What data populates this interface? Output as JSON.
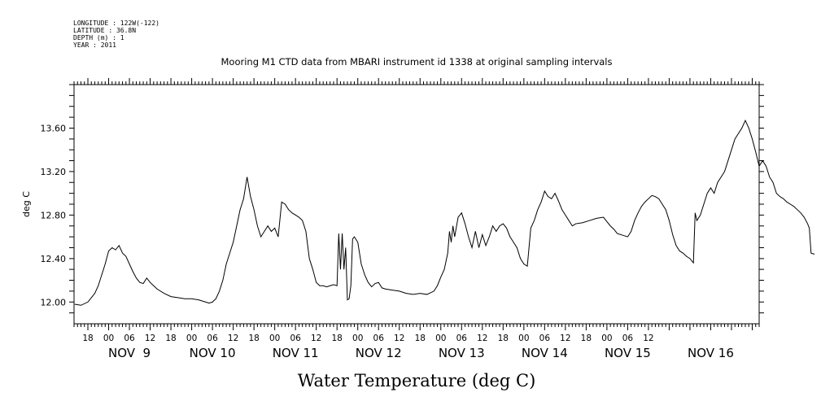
{
  "meta": {
    "longitude": "LONGITUDE : 122W(-122)",
    "latitude": "LATITUDE : 36.8N",
    "depth": "DEPTH (m) : 1",
    "year": "YEAR : 2011"
  },
  "chart_data": {
    "type": "line",
    "title": "Mooring M1 CTD data from MBARI instrument id 1338 at original sampling intervals",
    "xlabel": "Water Temperature (deg C)",
    "ylabel": "deg C",
    "ylim": [
      11.8,
      14.0
    ],
    "xlim_hours": [
      14,
      212
    ],
    "y_ticks": [
      "12.00",
      "12.40",
      "12.80",
      "13.20",
      "13.60"
    ],
    "hour_tick_labels": [
      "18",
      "00",
      "06",
      "12",
      "18",
      "00",
      "06",
      "12",
      "18",
      "00",
      "06",
      "12",
      "18",
      "00",
      "06",
      "12",
      "18",
      "00",
      "06",
      "12",
      "18",
      "00",
      "06",
      "12",
      "18",
      "00",
      "06",
      "12"
    ],
    "day_labels": [
      "NOV  9",
      "NOV 10",
      "NOV 11",
      "NOV 12",
      "NOV 13",
      "NOV 14",
      "NOV 15",
      "NOV 16"
    ],
    "grid": false,
    "series": [
      {
        "values": [
          [
            14.2,
            11.98
          ],
          [
            16,
            11.97
          ],
          [
            18,
            12.0
          ],
          [
            20,
            12.08
          ],
          [
            21,
            12.15
          ],
          [
            22,
            12.25
          ],
          [
            23,
            12.35
          ],
          [
            24,
            12.47
          ],
          [
            25,
            12.5
          ],
          [
            26,
            12.48
          ],
          [
            27,
            12.52
          ],
          [
            28,
            12.45
          ],
          [
            29,
            12.42
          ],
          [
            30,
            12.35
          ],
          [
            31,
            12.28
          ],
          [
            32,
            12.22
          ],
          [
            33,
            12.18
          ],
          [
            34,
            12.17
          ],
          [
            35,
            12.22
          ],
          [
            36,
            12.18
          ],
          [
            37,
            12.15
          ],
          [
            38,
            12.12
          ],
          [
            40,
            12.08
          ],
          [
            42,
            12.05
          ],
          [
            44,
            12.04
          ],
          [
            46,
            12.03
          ],
          [
            48,
            12.03
          ],
          [
            50,
            12.02
          ],
          [
            52,
            12.0
          ],
          [
            53,
            11.99
          ],
          [
            54,
            12.0
          ],
          [
            55,
            12.03
          ],
          [
            56,
            12.1
          ],
          [
            57,
            12.2
          ],
          [
            58,
            12.35
          ],
          [
            59,
            12.45
          ],
          [
            60,
            12.55
          ],
          [
            61,
            12.7
          ],
          [
            62,
            12.85
          ],
          [
            63,
            12.95
          ],
          [
            64,
            13.15
          ],
          [
            65,
            12.97
          ],
          [
            66,
            12.85
          ],
          [
            67,
            12.7
          ],
          [
            68,
            12.6
          ],
          [
            69,
            12.65
          ],
          [
            70,
            12.7
          ],
          [
            71,
            12.65
          ],
          [
            72,
            12.68
          ],
          [
            73,
            12.6
          ],
          [
            74,
            12.92
          ],
          [
            75,
            12.9
          ],
          [
            76,
            12.85
          ],
          [
            77,
            12.82
          ],
          [
            78,
            12.8
          ],
          [
            79,
            12.78
          ],
          [
            80,
            12.75
          ],
          [
            81,
            12.65
          ],
          [
            82,
            12.4
          ],
          [
            83,
            12.3
          ],
          [
            84,
            12.18
          ],
          [
            85,
            12.15
          ],
          [
            86,
            12.15
          ],
          [
            87,
            12.14
          ],
          [
            88,
            12.15
          ],
          [
            89,
            12.16
          ],
          [
            90,
            12.15
          ],
          [
            90.5,
            12.63
          ],
          [
            91,
            12.3
          ],
          [
            91.5,
            12.63
          ],
          [
            92,
            12.3
          ],
          [
            92.5,
            12.5
          ],
          [
            93,
            12.02
          ],
          [
            93.5,
            12.03
          ],
          [
            94,
            12.15
          ],
          [
            94.5,
            12.58
          ],
          [
            95,
            12.6
          ],
          [
            96,
            12.55
          ],
          [
            97,
            12.35
          ],
          [
            98,
            12.25
          ],
          [
            99,
            12.18
          ],
          [
            100,
            12.14
          ],
          [
            101,
            12.17
          ],
          [
            102,
            12.18
          ],
          [
            103,
            12.13
          ],
          [
            104,
            12.12
          ],
          [
            106,
            12.11
          ],
          [
            108,
            12.1
          ],
          [
            110,
            12.08
          ],
          [
            112,
            12.07
          ],
          [
            114,
            12.08
          ],
          [
            116,
            12.07
          ],
          [
            118,
            12.1
          ],
          [
            119,
            12.15
          ],
          [
            120,
            12.23
          ],
          [
            121,
            12.3
          ],
          [
            122,
            12.45
          ],
          [
            122.5,
            12.65
          ],
          [
            123,
            12.55
          ],
          [
            123.5,
            12.7
          ],
          [
            124,
            12.6
          ],
          [
            125,
            12.78
          ],
          [
            126,
            12.82
          ],
          [
            127,
            12.72
          ],
          [
            128,
            12.6
          ],
          [
            129,
            12.5
          ],
          [
            130,
            12.65
          ],
          [
            131,
            12.5
          ],
          [
            132,
            12.62
          ],
          [
            133,
            12.52
          ],
          [
            134,
            12.6
          ],
          [
            135,
            12.7
          ],
          [
            136,
            12.65
          ],
          [
            137,
            12.7
          ],
          [
            138,
            12.72
          ],
          [
            139,
            12.68
          ],
          [
            140,
            12.6
          ],
          [
            141,
            12.55
          ],
          [
            142,
            12.5
          ],
          [
            143,
            12.4
          ],
          [
            144,
            12.35
          ],
          [
            145,
            12.33
          ],
          [
            146,
            12.68
          ],
          [
            147,
            12.75
          ],
          [
            148,
            12.85
          ],
          [
            149,
            12.92
          ],
          [
            150,
            13.02
          ],
          [
            151,
            12.97
          ],
          [
            152,
            12.95
          ],
          [
            153,
            13.0
          ],
          [
            154,
            12.93
          ],
          [
            155,
            12.85
          ],
          [
            156,
            12.8
          ],
          [
            157,
            12.75
          ],
          [
            158,
            12.7
          ],
          [
            159,
            12.72
          ],
          [
            161,
            12.73
          ],
          [
            163,
            12.75
          ],
          [
            165,
            12.77
          ],
          [
            167,
            12.78
          ],
          [
            168,
            12.74
          ],
          [
            169,
            12.7
          ],
          [
            170,
            12.67
          ],
          [
            171,
            12.63
          ],
          [
            172,
            12.62
          ],
          [
            174,
            12.6
          ],
          [
            175,
            12.65
          ],
          [
            176,
            12.75
          ],
          [
            177,
            12.82
          ],
          [
            178,
            12.88
          ],
          [
            179,
            12.92
          ],
          [
            180,
            12.95
          ],
          [
            181,
            12.98
          ],
          [
            182,
            12.97
          ],
          [
            183,
            12.95
          ],
          [
            184,
            12.9
          ],
          [
            185,
            12.85
          ],
          [
            186,
            12.75
          ],
          [
            187,
            12.62
          ],
          [
            188,
            12.52
          ],
          [
            189,
            12.47
          ],
          [
            190,
            12.45
          ],
          [
            191,
            12.42
          ],
          [
            192,
            12.4
          ],
          [
            193,
            12.36
          ],
          [
            193.5,
            12.82
          ],
          [
            194,
            12.75
          ],
          [
            195,
            12.8
          ],
          [
            196,
            12.9
          ],
          [
            197,
            13.0
          ],
          [
            198,
            13.05
          ],
          [
            199,
            13.0
          ],
          [
            200,
            13.1
          ],
          [
            201,
            13.15
          ],
          [
            202,
            13.2
          ],
          [
            203,
            13.3
          ],
          [
            204,
            13.4
          ],
          [
            205,
            13.5
          ],
          [
            206,
            13.55
          ],
          [
            207,
            13.6
          ],
          [
            208,
            13.67
          ],
          [
            209,
            13.6
          ],
          [
            210,
            13.5
          ],
          [
            211,
            13.38
          ],
          [
            212,
            13.25
          ],
          [
            213,
            13.3
          ],
          [
            214,
            13.25
          ],
          [
            215,
            13.15
          ],
          [
            216,
            13.1
          ],
          [
            217,
            13.0
          ],
          [
            218,
            12.97
          ],
          [
            219,
            12.95
          ],
          [
            220,
            12.92
          ],
          [
            221,
            12.9
          ],
          [
            222,
            12.88
          ],
          [
            223,
            12.85
          ],
          [
            224,
            12.82
          ],
          [
            225,
            12.78
          ],
          [
            226,
            12.72
          ],
          [
            226.5,
            12.68
          ],
          [
            227,
            12.45
          ],
          [
            228,
            12.44
          ]
        ]
      }
    ]
  }
}
